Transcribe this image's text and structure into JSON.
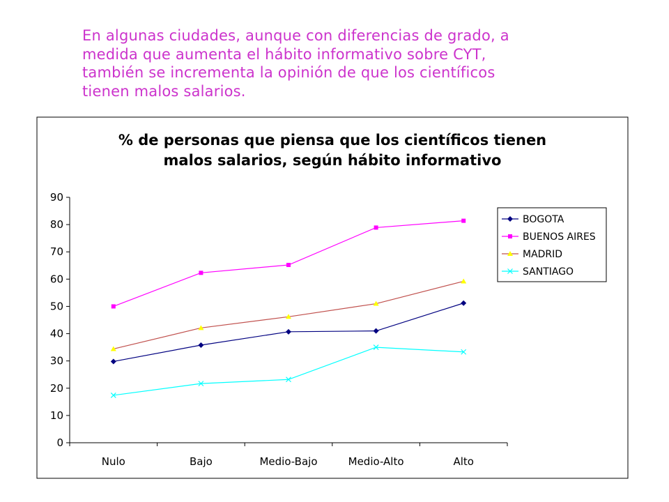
{
  "intro": {
    "lines": [
      "En algunas ciudades, aunque con diferencias de grado, a",
      "medida que aumenta el hábito informativo sobre CYT,",
      "también se incrementa la opinión de que los científicos",
      "tienen malos salarios."
    ],
    "color": "#cc33cc"
  },
  "chart_data": {
    "type": "line",
    "title": "% de personas que piensa que los científicos tienen malos salarios, según hábito informativo",
    "title_lines": [
      "% de personas que piensa que los científicos tienen",
      "malos salarios, según hábito informativo"
    ],
    "xlabel": "",
    "ylabel": "",
    "categories": [
      "Nulo",
      "Bajo",
      "Medio-Bajo",
      "Medio-Alto",
      "Alto"
    ],
    "ylim": [
      0,
      90
    ],
    "yticks": [
      0,
      10,
      20,
      30,
      40,
      50,
      60,
      70,
      80,
      90
    ],
    "grid": false,
    "legend_position": "right",
    "series": [
      {
        "name": "BOGOTA",
        "color": "#000080",
        "marker": "diamond",
        "values": [
          29.8,
          35.8,
          40.7,
          41.0,
          51.2
        ]
      },
      {
        "name": "BUENOS AIRES",
        "color": "#ff00ff",
        "marker": "square",
        "values": [
          50.0,
          62.3,
          65.2,
          78.9,
          81.4
        ]
      },
      {
        "name": "MADRID",
        "color": "#c0504d",
        "marker": "triangle",
        "marker_color": "#ffff00",
        "values": [
          34.4,
          42.1,
          46.2,
          51.0,
          59.2
        ]
      },
      {
        "name": "SANTIAGO",
        "color": "#00ffff",
        "marker": "x",
        "values": [
          17.4,
          21.7,
          23.2,
          35.0,
          33.3
        ]
      }
    ]
  }
}
